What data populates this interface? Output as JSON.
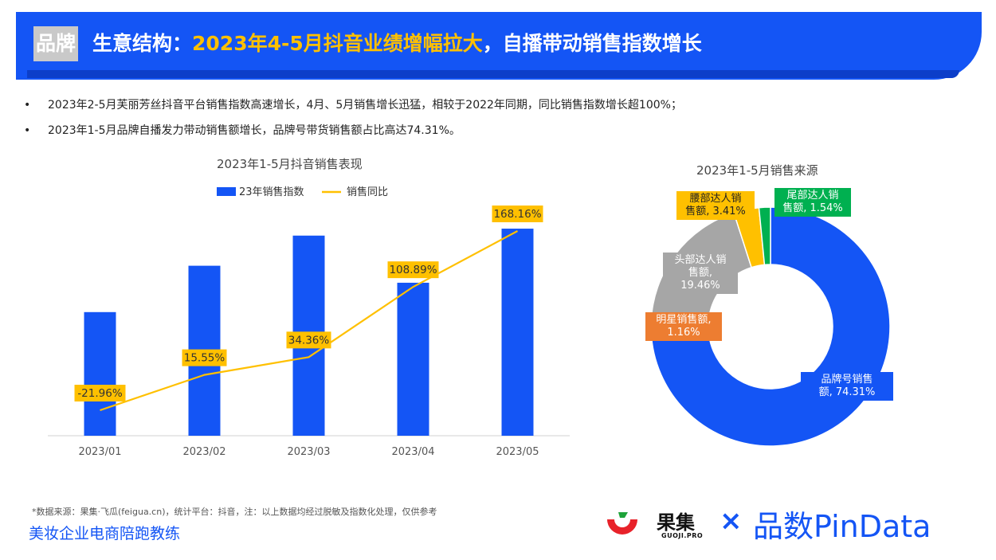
{
  "header": {
    "tag": "品牌",
    "title_prefix": "生意结构：",
    "title_highlight": "2023年4-5月抖音业绩增幅拉大",
    "title_suffix": "，自播带动销售指数增长"
  },
  "bullets": [
    "2023年2-5月芙丽芳丝抖音平台销售指数高速增长，4月、5月销售增长迅猛，相较于2022年同期，同比销售指数增长超100%；",
    "2023年1-5月品牌自播发力带动销售额增长，品牌号带货销售额占比高达74.31%。"
  ],
  "bullet_symbol": "•",
  "colors": {
    "brand_blue": "#1455f5",
    "yellow": "#ffc000",
    "orange": "#ed7d31",
    "gray": "#a6a6a6",
    "green": "#00b050"
  },
  "chart_data": [
    {
      "type": "bar",
      "title": "2023年1-5月抖音销售表现",
      "categories": [
        "2023/01",
        "2023/02",
        "2023/03",
        "2023/04",
        "2023/05"
      ],
      "series": [
        {
          "name": "23年销售指数",
          "kind": "bar",
          "color": "#1455f5",
          "values": [
            160,
            220,
            259,
            198,
            268
          ]
        },
        {
          "name": "销售同比",
          "kind": "line",
          "color": "#ffc000",
          "values": [
            -21.96,
            15.55,
            34.36,
            108.89,
            168.16
          ],
          "labels": [
            "-21.96%",
            "15.55%",
            "34.36%",
            "108.89%",
            "168.16%"
          ]
        }
      ],
      "legend": "top-center"
    },
    {
      "type": "pie",
      "title": "2023年1-5月销售来源",
      "slices": [
        {
          "label": "品牌号销售额",
          "value": 74.31,
          "text": "品牌号销售额, 74.31%",
          "color": "#1455f5"
        },
        {
          "label": "明星销售额",
          "value": 1.16,
          "text": "明星销售额, 1.16%",
          "color": "#ed7d31"
        },
        {
          "label": "头部达人销售额",
          "value": 19.46,
          "text": "头部达人销售额, 19.46%",
          "color": "#a6a6a6"
        },
        {
          "label": "腰部达人销售额",
          "value": 3.41,
          "text": "腰部达人销售额, 3.41%",
          "color": "#ffc000"
        },
        {
          "label": "尾部达人销售额",
          "value": 1.54,
          "text": "尾部达人销售额, 1.54%",
          "color": "#00b050"
        }
      ]
    }
  ],
  "pie_labels": {
    "brand": [
      "品牌号销售",
      "额, 74.31%"
    ],
    "star": [
      "明星销售额,",
      "1.16%"
    ],
    "head": [
      "头部达人销",
      "售额,",
      "19.46%"
    ],
    "waist": [
      "腰部达人销",
      "售额, 3.41%"
    ],
    "tail": [
      "尾部达人销",
      "售额, 1.54%"
    ]
  },
  "footer": {
    "note": "*数据来源：果集·飞瓜(feigua.cn)，统计平台：抖音，注：以上数据均经过脱敏及指数化处理，仅供参考",
    "left_text": "美妆企业电商陪跑教练",
    "logo_guoji": "果集",
    "logo_guoji_sub": "GUOJI.PRO",
    "logo_x": "×",
    "logo_pindata": "品数PinData"
  }
}
